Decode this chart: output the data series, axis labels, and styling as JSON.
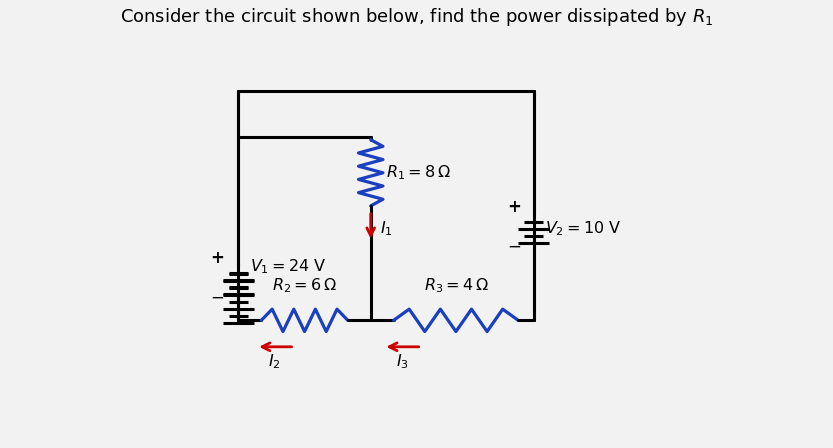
{
  "title": "Consider the circuit shown below, find the power dissipated by $R_1$",
  "title_fontsize": 13,
  "bg_color": "#f2f2f2",
  "wire_color": "#000000",
  "blue": "#1a3fbf",
  "red": "#cc0000",
  "labels": {
    "R1": "$R_1 = 8\\,\\Omega$",
    "R2": "$R_2 = 6\\,\\Omega$",
    "R3": "$R_3 = 4\\,\\Omega$",
    "V1": "$V_1 = 24$ V",
    "V2": "$V_2 = 10$ V",
    "I1": "$I_1$",
    "I2": "$I_2$",
    "I3": "$I_3$"
  }
}
